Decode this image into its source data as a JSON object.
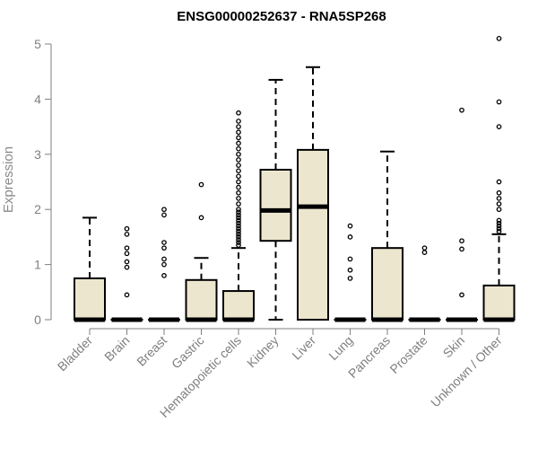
{
  "chart_data": {
    "type": "boxplot",
    "title": "ENSG00000252637 - RNA5SP268",
    "xlabel": "",
    "ylabel": "Expression",
    "ylim": [
      0,
      5.2
    ],
    "yticks": [
      0,
      1,
      2,
      3,
      4,
      5
    ],
    "tick_labels": [
      "0",
      "1",
      "2",
      "3",
      "4",
      "5"
    ],
    "box_fill": "#ede6cf",
    "categories": [
      "Bladder",
      "Brain",
      "Breast",
      "Gastric",
      "Hematopoietic cells",
      "Kidney",
      "Liver",
      "Lung",
      "Pancreas",
      "Prostate",
      "Skin",
      "Unknown / Other"
    ],
    "boxes": [
      {
        "name": "Bladder",
        "q1": 0,
        "median": 0,
        "q3": 0.75,
        "whisker_low": 0,
        "whisker_high": 1.85,
        "outliers": []
      },
      {
        "name": "Brain",
        "q1": 0,
        "median": 0,
        "q3": 0,
        "whisker_low": 0,
        "whisker_high": 0,
        "outliers": [
          0.45,
          0.95,
          1.05,
          1.2,
          1.3,
          1.55,
          1.65
        ]
      },
      {
        "name": "Breast",
        "q1": 0,
        "median": 0,
        "q3": 0,
        "whisker_low": 0,
        "whisker_high": 0,
        "outliers": [
          0.8,
          1.0,
          1.1,
          1.3,
          1.4,
          1.9,
          2.0
        ]
      },
      {
        "name": "Gastric",
        "q1": 0,
        "median": 0,
        "q3": 0.72,
        "whisker_low": 0,
        "whisker_high": 1.12,
        "outliers": [
          1.85,
          2.45
        ]
      },
      {
        "name": "Hematopoietic cells",
        "q1": 0,
        "median": 0,
        "q3": 0.52,
        "whisker_low": 0,
        "whisker_high": 1.3,
        "outliers": [
          1.35,
          1.4,
          1.45,
          1.5,
          1.55,
          1.6,
          1.65,
          1.7,
          1.75,
          1.8,
          1.85,
          1.9,
          1.95,
          2.0,
          2.1,
          2.2,
          2.3,
          2.4,
          2.5,
          2.6,
          2.7,
          2.8,
          2.9,
          3.0,
          3.1,
          3.2,
          3.3,
          3.4,
          3.5,
          3.6,
          3.75
        ]
      },
      {
        "name": "Kidney",
        "q1": 1.43,
        "median": 1.98,
        "q3": 2.72,
        "whisker_low": 0,
        "whisker_high": 4.35,
        "outliers": []
      },
      {
        "name": "Liver",
        "q1": 0,
        "median": 2.05,
        "q3": 3.08,
        "whisker_low": 0,
        "whisker_high": 4.58,
        "outliers": []
      },
      {
        "name": "Lung",
        "q1": 0,
        "median": 0,
        "q3": 0,
        "whisker_low": 0,
        "whisker_high": 0,
        "outliers": [
          0.75,
          0.9,
          1.1,
          1.5,
          1.7
        ]
      },
      {
        "name": "Pancreas",
        "q1": 0,
        "median": 0,
        "q3": 1.3,
        "whisker_low": 0,
        "whisker_high": 3.05,
        "outliers": []
      },
      {
        "name": "Prostate",
        "q1": 0,
        "median": 0,
        "q3": 0,
        "whisker_low": 0,
        "whisker_high": 0,
        "outliers": [
          1.22,
          1.3
        ]
      },
      {
        "name": "Skin",
        "q1": 0,
        "median": 0,
        "q3": 0,
        "whisker_low": 0,
        "whisker_high": 0,
        "outliers": [
          0.45,
          1.28,
          1.43,
          3.8
        ]
      },
      {
        "name": "Unknown / Other",
        "q1": 0,
        "median": 0,
        "q3": 0.62,
        "whisker_low": 0,
        "whisker_high": 1.55,
        "outliers": [
          1.6,
          1.65,
          1.7,
          1.75,
          1.8,
          2.0,
          2.1,
          2.2,
          2.3,
          2.5,
          3.5,
          3.95,
          5.1
        ]
      }
    ]
  }
}
